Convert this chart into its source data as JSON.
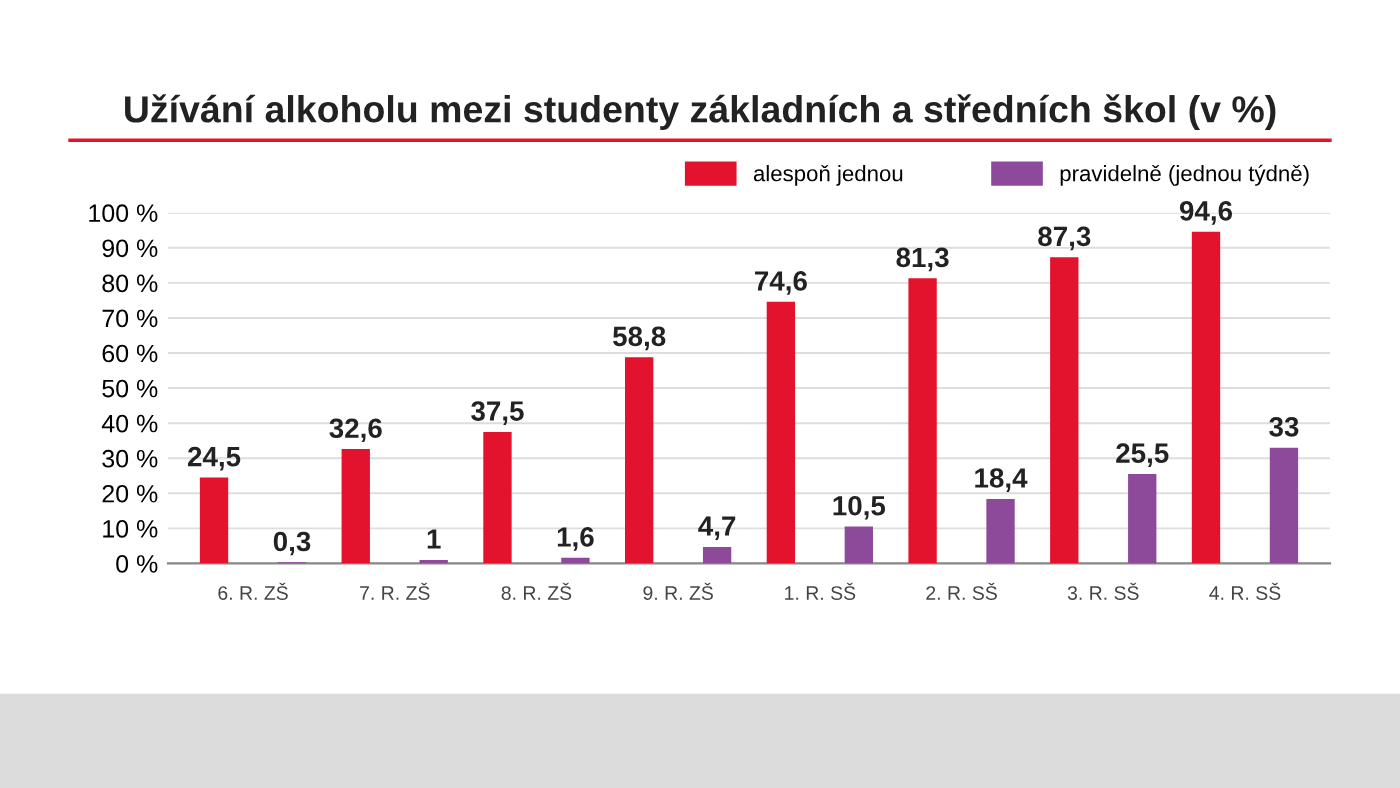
{
  "chart_data": {
    "type": "bar",
    "title": "Užívání alkoholu mezi studenty základních a středních škol (v %)",
    "categories": [
      "6. R. ZŠ",
      "7. R. ZŠ",
      "8. R. ZŠ",
      "9. R. ZŠ",
      "1. R. SŠ",
      "2. R. SŠ",
      "3. R. SŠ",
      "4. R. SŠ"
    ],
    "series": [
      {
        "name": "alespoň jednou",
        "color": "#e3122d",
        "values": [
          24.5,
          32.6,
          37.5,
          58.8,
          74.6,
          81.3,
          87.3,
          94.6
        ],
        "value_labels": [
          "24,5",
          "32,6",
          "37,5",
          "58,8",
          "74,6",
          "81,3",
          "87,3",
          "94,6"
        ]
      },
      {
        "name": "pravidelně (jednou týdně)",
        "color": "#8e4a9a",
        "values": [
          0.3,
          1,
          1.6,
          4.7,
          10.5,
          18.4,
          25.5,
          33
        ],
        "value_labels": [
          "0,3",
          "1",
          "1,6",
          "4,7",
          "10,5",
          "18,4",
          "25,5",
          "33"
        ]
      }
    ],
    "ylim": [
      0,
      100
    ],
    "yticks": [
      {
        "value": 0,
        "label": "0 %"
      },
      {
        "value": 10,
        "label": "10 %"
      },
      {
        "value": 20,
        "label": "20 %"
      },
      {
        "value": 30,
        "label": "30 %"
      },
      {
        "value": 40,
        "label": "40 %"
      },
      {
        "value": 50,
        "label": "50 %"
      },
      {
        "value": 60,
        "label": "60 %"
      },
      {
        "value": 70,
        "label": "70 %"
      },
      {
        "value": 80,
        "label": "80 %"
      },
      {
        "value": 90,
        "label": "90 %"
      },
      {
        "value": 100,
        "label": "100 %"
      }
    ],
    "grid": "y",
    "legend": "top right"
  }
}
